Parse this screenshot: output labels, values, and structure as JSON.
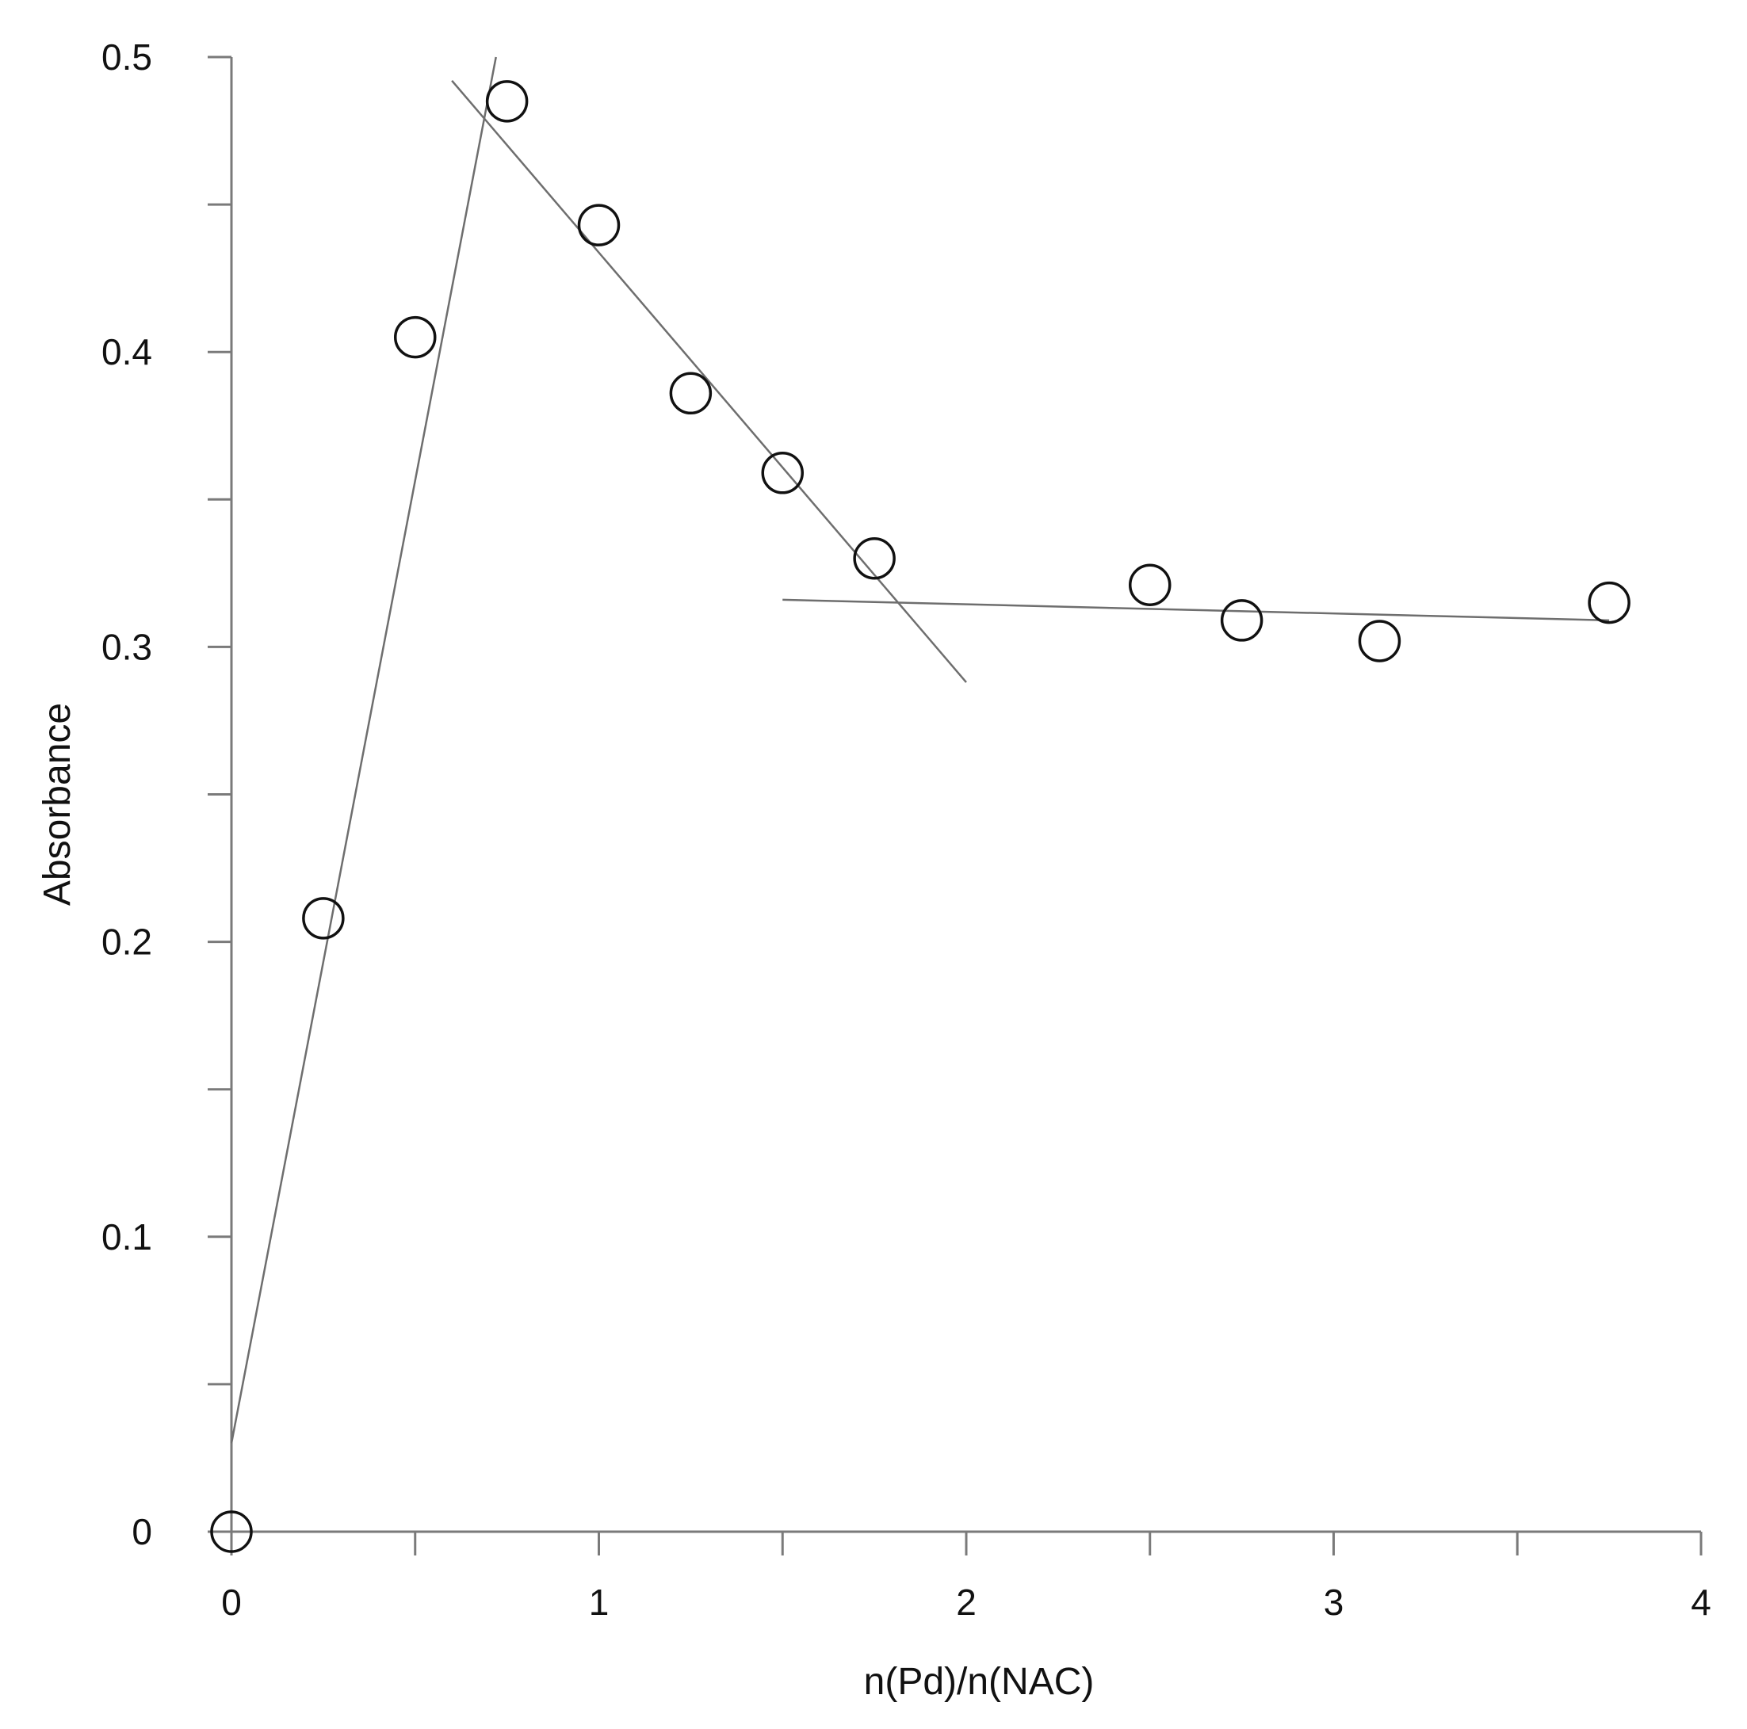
{
  "chart_data": {
    "type": "scatter",
    "title": "",
    "xlabel": "n(Pd)/n(NAC)",
    "ylabel": "Absorbance",
    "xlim": [
      0,
      4
    ],
    "ylim": [
      0,
      0.5
    ],
    "grid": false,
    "x_ticks": [
      {
        "value": 0,
        "label": "0"
      },
      {
        "value": 1,
        "label": "1"
      },
      {
        "value": 2,
        "label": "2"
      },
      {
        "value": 3,
        "label": "3"
      },
      {
        "value": 4,
        "label": "4"
      }
    ],
    "x_minor_ticks": [
      0.5,
      1.5,
      2.5,
      3.5
    ],
    "y_ticks": [
      {
        "value": 0,
        "label": "0"
      },
      {
        "value": 0.1,
        "label": "0.1"
      },
      {
        "value": 0.2,
        "label": "0.2"
      },
      {
        "value": 0.3,
        "label": "0.3"
      },
      {
        "value": 0.4,
        "label": "0.4"
      },
      {
        "value": 0.5,
        "label": "0.5"
      }
    ],
    "y_minor_ticks": [
      0.05,
      0.15,
      0.25,
      0.35,
      0.45
    ],
    "series": [
      {
        "marker": "open-circle",
        "x": [
          0,
          0.25,
          0.5,
          0.75,
          1.0,
          1.25,
          1.5,
          1.75,
          2.5,
          2.75,
          3.125,
          3.75
        ],
        "y": [
          0.0,
          0.208,
          0.405,
          0.485,
          0.443,
          0.386,
          0.359,
          0.33,
          0.321,
          0.309,
          0.302,
          0.315
        ]
      }
    ],
    "fit_lines": [
      {
        "x": [
          0.0,
          0.72
        ],
        "y": [
          0.03,
          0.5
        ]
      },
      {
        "x": [
          0.6,
          2.0
        ],
        "y": [
          0.492,
          0.288
        ]
      },
      {
        "x": [
          1.5,
          3.75
        ],
        "y": [
          0.316,
          0.309
        ]
      }
    ],
    "colors": {
      "axis": "#7a7a7a",
      "marker": "#111111",
      "fit_line": "#6e6e6e",
      "text": "#111111"
    }
  }
}
